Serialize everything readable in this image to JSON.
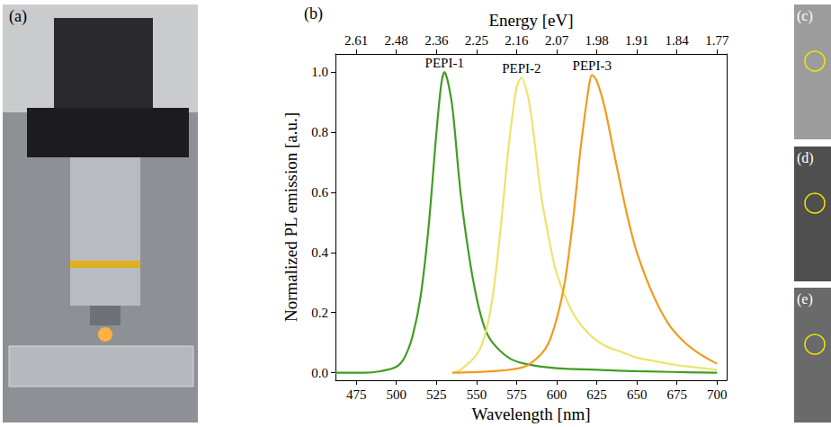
{
  "chart_data": {
    "type": "line",
    "panel_label": "(b)",
    "x_label": "Wavelength [nm]",
    "x2_label": "Energy [eV]",
    "y_label": "Normalized PL emission [a.u.]",
    "xlim": [
      462,
      706
    ],
    "xticks": [
      475,
      500,
      525,
      550,
      575,
      600,
      625,
      650,
      675,
      700
    ],
    "x2ticks": [
      {
        "value": 475,
        "label": "2.61"
      },
      {
        "value": 500,
        "label": "2.48"
      },
      {
        "value": 525,
        "label": "2.36"
      },
      {
        "value": 550,
        "label": "2.25"
      },
      {
        "value": 575,
        "label": "2.16"
      },
      {
        "value": 600,
        "label": "2.07"
      },
      {
        "value": 625,
        "label": "1.98"
      },
      {
        "value": 650,
        "label": "1.91"
      },
      {
        "value": 675,
        "label": "1.84"
      },
      {
        "value": 700,
        "label": "1.77"
      }
    ],
    "ylim": [
      -0.025,
      1.06
    ],
    "yticks": [
      {
        "value": 0,
        "label": "0.0"
      },
      0.2,
      0.4,
      0.6,
      0.8,
      {
        "value": 1,
        "label": "1.0"
      }
    ],
    "grid": false,
    "series": [
      {
        "name": "PEPI-1",
        "color": "#3f9e22",
        "x": [
          462,
          480,
          490,
          500,
          505,
          510,
          515,
          520,
          525,
          528,
          530,
          532,
          535,
          540,
          545,
          550,
          555,
          560,
          570,
          580,
          600,
          625,
          650,
          700
        ],
        "values": [
          0,
          0,
          0.005,
          0.02,
          0.05,
          0.12,
          0.25,
          0.48,
          0.8,
          0.96,
          1.0,
          0.97,
          0.88,
          0.6,
          0.4,
          0.25,
          0.15,
          0.1,
          0.05,
          0.03,
          0.015,
          0.01,
          0.005,
          0
        ]
      },
      {
        "name": "PEPI-2",
        "color": "#ece46a",
        "x": [
          535,
          540,
          550,
          555,
          560,
          565,
          570,
          575,
          578,
          582,
          585,
          590,
          595,
          600,
          610,
          620,
          630,
          640,
          650,
          660,
          675,
          700
        ],
        "values": [
          0,
          0.01,
          0.06,
          0.12,
          0.25,
          0.48,
          0.75,
          0.95,
          0.98,
          0.92,
          0.82,
          0.6,
          0.45,
          0.33,
          0.2,
          0.13,
          0.09,
          0.07,
          0.05,
          0.04,
          0.025,
          0.01
        ]
      },
      {
        "name": "PEPI-3",
        "color": "#f29a1c",
        "x": [
          535,
          560,
          580,
          590,
          595,
          600,
          605,
          610,
          615,
          620,
          622,
          625,
          630,
          635,
          640,
          645,
          650,
          660,
          670,
          680,
          690,
          700
        ],
        "values": [
          0,
          0.005,
          0.02,
          0.06,
          0.1,
          0.18,
          0.3,
          0.5,
          0.75,
          0.95,
          0.99,
          0.97,
          0.88,
          0.75,
          0.62,
          0.5,
          0.4,
          0.26,
          0.16,
          0.1,
          0.06,
          0.03
        ]
      }
    ]
  },
  "panels": [
    {
      "label": "(a)"
    },
    {
      "label": "(c)"
    },
    {
      "label": "(d)"
    },
    {
      "label": "(e)"
    }
  ]
}
